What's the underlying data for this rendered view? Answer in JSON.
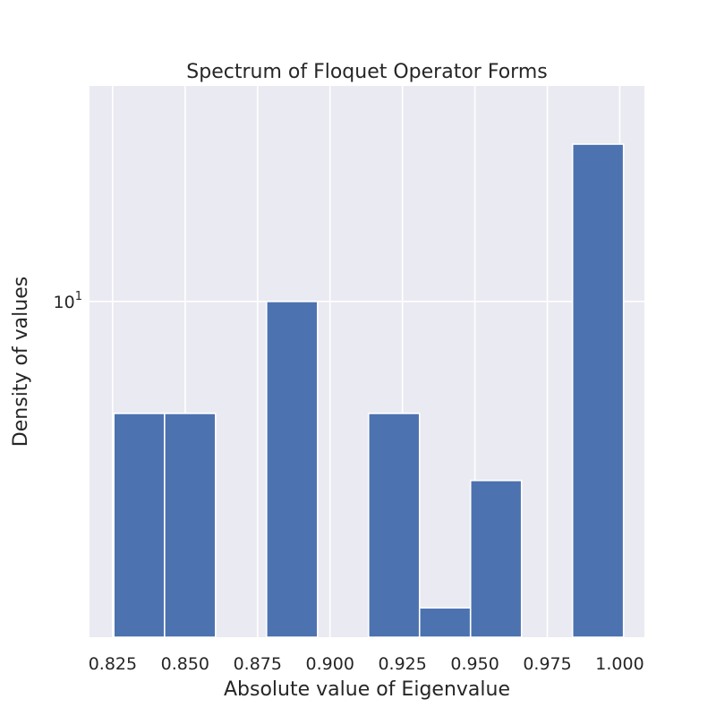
{
  "chart_data": {
    "type": "bar",
    "title": "Spectrum of Floquet Operator Forms",
    "xlabel": "Absolute value of Eigenvalue",
    "ylabel": "Density of values",
    "y_scale": "log",
    "xlim": [
      0.817,
      1.0085
    ],
    "ylim": [
      1.25,
      38
    ],
    "grid": true,
    "x_ticks": [
      {
        "value": 0.825,
        "label": "0.825"
      },
      {
        "value": 0.85,
        "label": "0.850"
      },
      {
        "value": 0.875,
        "label": "0.875"
      },
      {
        "value": 0.9,
        "label": "0.900"
      },
      {
        "value": 0.925,
        "label": "0.925"
      },
      {
        "value": 0.95,
        "label": "0.950"
      },
      {
        "value": 0.975,
        "label": "0.975"
      },
      {
        "value": 1.0,
        "label": "1.000"
      }
    ],
    "y_ticks": [
      {
        "value": 10,
        "label_base": "10",
        "label_exp": "1"
      }
    ],
    "bins": [
      {
        "x0": 0.8254,
        "x1": 0.8429,
        "value": 5.0
      },
      {
        "x0": 0.8429,
        "x1": 0.8605,
        "value": 5.0
      },
      {
        "x0": 0.8781,
        "x1": 0.8957,
        "value": 10.0
      },
      {
        "x0": 0.9133,
        "x1": 0.9309,
        "value": 5.0
      },
      {
        "x0": 0.9309,
        "x1": 0.9485,
        "value": 1.5
      },
      {
        "x0": 0.9485,
        "x1": 0.9661,
        "value": 3.3
      },
      {
        "x0": 0.9837,
        "x1": 1.0013,
        "value": 26.5
      }
    ],
    "colors": {
      "bar": "#4c72b0",
      "background": "#eaeaf2",
      "grid": "#ffffff",
      "text": "#262626"
    }
  }
}
